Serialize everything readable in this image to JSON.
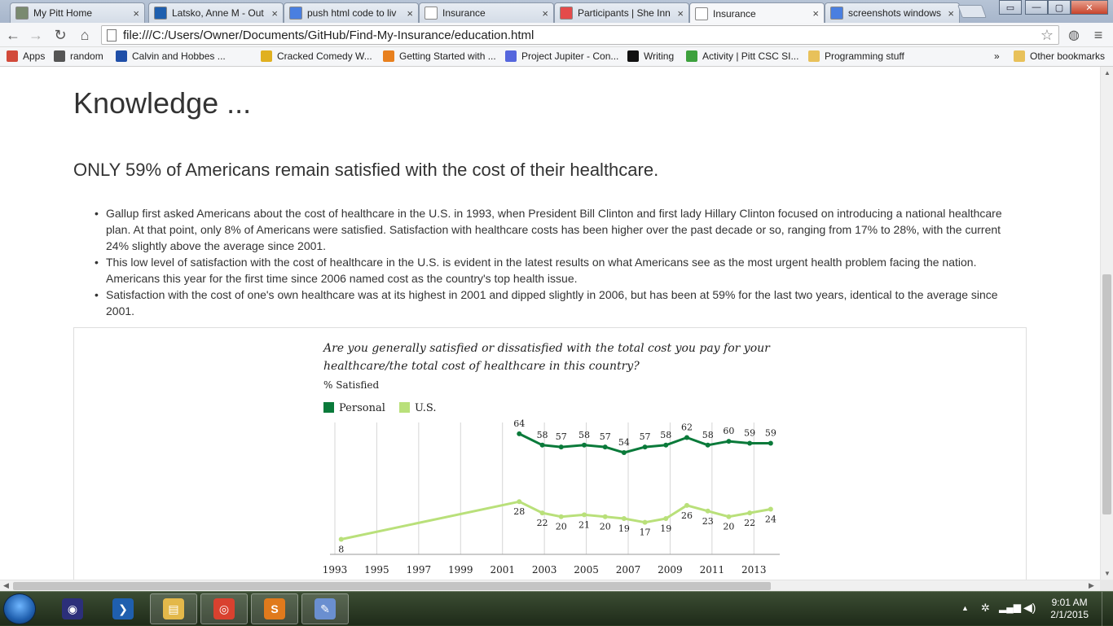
{
  "browser": {
    "tabs": [
      {
        "title": "My Pitt Home",
        "icon_color": "#7a8a70",
        "active": false
      },
      {
        "title": "Latsko, Anne M - Out",
        "icon_color": "#1f5fae",
        "active": false
      },
      {
        "title": "push html code to liv",
        "icon_color": "#4a7fe0",
        "active": false
      },
      {
        "title": "Insurance",
        "icon_color": "#ffffff",
        "active": false
      },
      {
        "title": "Participants | She Inn",
        "icon_color": "#e44b4b",
        "active": false
      },
      {
        "title": "Insurance",
        "icon_color": "#ffffff",
        "active": true
      },
      {
        "title": "screenshots windows",
        "icon_color": "#4a7fe0",
        "active": false
      }
    ],
    "tab_close": "×",
    "url": "file:///C:/Users/Owner/Documents/GitHub/Find-My-Insurance/education.html",
    "nav": {
      "back": "←",
      "forward": "→",
      "reload": "↻",
      "home": "⌂",
      "star": "☆",
      "menu": "≡"
    },
    "bookmarks": [
      {
        "label": "Apps",
        "icon_color": "#d24a3a"
      },
      {
        "label": "random",
        "icon_color": "#555555"
      },
      {
        "label": "Calvin and Hobbes ...",
        "icon_color": "#1f4fa8"
      },
      {
        "label": "Cracked Comedy W...",
        "icon_color": "#e0b020"
      },
      {
        "label": "Getting Started with ...",
        "icon_color": "#e8801e"
      },
      {
        "label": "Project Jupiter - Con...",
        "icon_color": "#5566dd"
      },
      {
        "label": "Writing",
        "icon_color": "#111111"
      },
      {
        "label": "Activity | Pitt CSC SI...",
        "icon_color": "#3da13d"
      },
      {
        "label": "Programming stuff",
        "icon_color": "#e8c15a"
      }
    ],
    "bookmarks_more": "»",
    "other_bookmarks": "Other bookmarks"
  },
  "page": {
    "heading": "Knowledge ...",
    "subheading": "ONLY 59% of Americans remain satisfied with the cost of their healthcare.",
    "bullets": [
      "Gallup first asked Americans about the cost of healthcare in the U.S. in 1993, when President Bill Clinton and first lady Hillary Clinton focused on introducing a national healthcare plan. At that point, only 8% of Americans were satisfied. Satisfaction with healthcare costs has been higher over the past decade or so, ranging from 17% to 28%, with the current 24% slightly above the average since 2001.",
      "This low level of satisfaction with the cost of healthcare in the U.S. is evident in the latest results on what Americans see as the most urgent health problem facing the nation. Americans this year for the first time since 2006 named cost as the country's top health issue.",
      "Satisfaction with the cost of one's own healthcare was at its highest in 2001 and dipped slightly in 2006, but has been at 59% for the last two years, identical to the average since 2001."
    ]
  },
  "chart_data": {
    "type": "line",
    "title_line1": "Are you generally satisfied or dissatisfied with the total cost you pay for your",
    "title_line2": "healthcare/the total cost of healthcare in this country?",
    "subtitle": "% Satisfied",
    "xlim": [
      1993,
      2014
    ],
    "ylim": [
      0,
      70
    ],
    "x_ticks": [
      "1993",
      "1995",
      "1997",
      "1999",
      "2001",
      "2003",
      "2005",
      "2007",
      "2009",
      "2011",
      "2013"
    ],
    "legend_placement": "top-left",
    "series": [
      {
        "name": "Personal",
        "color": "#0a7a3a",
        "x": [
          2001.8,
          2002.9,
          2003.8,
          2004.9,
          2005.9,
          2006.8,
          2007.8,
          2008.8,
          2009.8,
          2010.8,
          2011.8,
          2012.8,
          2013.8
        ],
        "values": [
          64,
          58,
          57,
          58,
          57,
          54,
          57,
          58,
          62,
          58,
          60,
          59,
          59
        ]
      },
      {
        "name": "U.S.",
        "color": "#b9e07a",
        "x": [
          1993.3,
          2001.8,
          2002.9,
          2003.8,
          2004.9,
          2005.9,
          2006.8,
          2007.8,
          2008.8,
          2009.8,
          2010.8,
          2011.8,
          2012.8,
          2013.8
        ],
        "values": [
          8,
          28,
          22,
          20,
          21,
          20,
          19,
          17,
          19,
          26,
          23,
          20,
          22,
          24
        ]
      }
    ]
  },
  "taskbar": {
    "apps": [
      {
        "name": "eclipse",
        "color": "#2c2f7a",
        "glyph": "◉",
        "open": false
      },
      {
        "name": "powershell",
        "color": "#1f5fae",
        "glyph": "❯",
        "open": false
      },
      {
        "name": "file-explorer",
        "color": "#e3b84a",
        "glyph": "▤",
        "open": true
      },
      {
        "name": "chrome",
        "color": "#d9412f",
        "glyph": "◎",
        "open": true
      },
      {
        "name": "sublime-text",
        "color": "#e07a1c",
        "glyph": "S",
        "open": true
      },
      {
        "name": "paint",
        "color": "#6a8fd0",
        "glyph": "✎",
        "open": true
      }
    ],
    "tray_arrow": "▲",
    "time": "9:01 AM",
    "date": "2/1/2015"
  }
}
